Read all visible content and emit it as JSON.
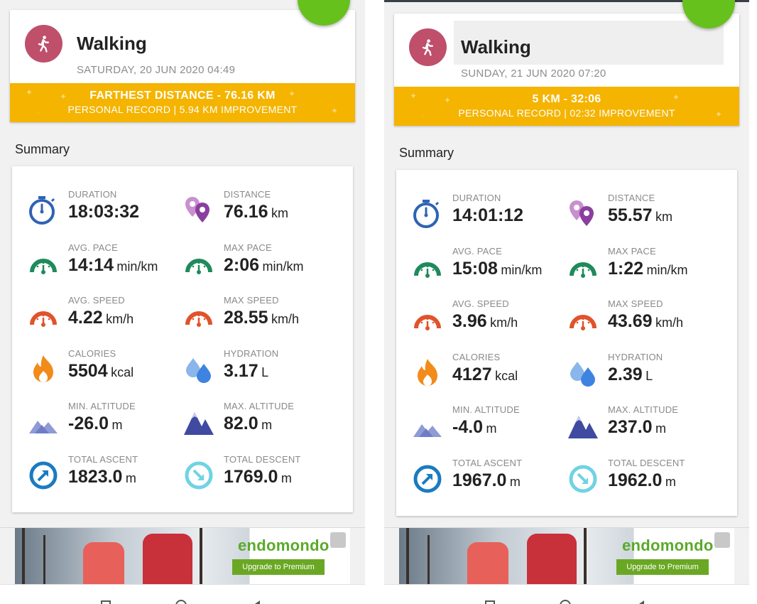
{
  "colors": {
    "accent_green": "#66c11c",
    "record_gold": "#f4b400",
    "avatar": "#bf4f6b",
    "pace_green": "#1f8a5b",
    "speed_orange": "#e0532b",
    "duration_blue": "#2e63b5",
    "distance_purple": "#8a3fa0",
    "calories_orange": "#f28b1a",
    "hydration_blue": "#3f83e0",
    "altitude_blue": "#3f4aa0",
    "ascent_blue": "#1b7bc0",
    "descent_cyan": "#6fd3e3"
  },
  "fab_label": "+",
  "ad": {
    "brand": "endomondo",
    "cta": "Upgrade to Premium"
  },
  "panels": [
    {
      "title": "Walking",
      "date": "SATURDAY, 20 JUN 2020 04:49",
      "record_line1": "FARTHEST DISTANCE  -  76.16 KM",
      "record_line2": "PERSONAL RECORD  |  5.94 KM IMPROVEMENT",
      "summary_label": "Summary",
      "stats": [
        {
          "label": "DURATION",
          "value": "18:03:32",
          "unit": "",
          "icon": "stopwatch-icon"
        },
        {
          "label": "DISTANCE",
          "value": "76.16",
          "unit": "km",
          "icon": "distance-pins-icon"
        },
        {
          "label": "AVG. PACE",
          "value": "14:14",
          "unit": "min/km",
          "icon": "pace-gauge-icon"
        },
        {
          "label": "MAX PACE",
          "value": "2:06",
          "unit": "min/km",
          "icon": "pace-gauge-icon"
        },
        {
          "label": "AVG. SPEED",
          "value": "4.22",
          "unit": "km/h",
          "icon": "speed-gauge-icon"
        },
        {
          "label": "MAX SPEED",
          "value": "28.55",
          "unit": "km/h",
          "icon": "speed-gauge-icon"
        },
        {
          "label": "CALORIES",
          "value": "5504",
          "unit": "kcal",
          "icon": "flame-icon"
        },
        {
          "label": "HYDRATION",
          "value": "3.17",
          "unit": "L",
          "icon": "water-drops-icon"
        },
        {
          "label": "MIN. ALTITUDE",
          "value": "-26.0",
          "unit": "m",
          "icon": "mountain-low-icon"
        },
        {
          "label": "MAX. ALTITUDE",
          "value": "82.0",
          "unit": "m",
          "icon": "mountain-high-icon"
        },
        {
          "label": "TOTAL ASCENT",
          "value": "1823.0",
          "unit": "m",
          "icon": "ascent-arrow-icon"
        },
        {
          "label": "TOTAL DESCENT",
          "value": "1769.0",
          "unit": "m",
          "icon": "descent-arrow-icon"
        }
      ]
    },
    {
      "title": "Walking",
      "date": "SUNDAY, 21 JUN 2020 07:20",
      "record_line1": "5 KM  -  32:06",
      "record_line2": "PERSONAL RECORD  |  02:32 IMPROVEMENT",
      "summary_label": "Summary",
      "stats": [
        {
          "label": "DURATION",
          "value": "14:01:12",
          "unit": "",
          "icon": "stopwatch-icon"
        },
        {
          "label": "DISTANCE",
          "value": "55.57",
          "unit": "km",
          "icon": "distance-pins-icon"
        },
        {
          "label": "AVG. PACE",
          "value": "15:08",
          "unit": "min/km",
          "icon": "pace-gauge-icon"
        },
        {
          "label": "MAX PACE",
          "value": "1:22",
          "unit": "min/km",
          "icon": "pace-gauge-icon"
        },
        {
          "label": "AVG. SPEED",
          "value": "3.96",
          "unit": "km/h",
          "icon": "speed-gauge-icon"
        },
        {
          "label": "MAX SPEED",
          "value": "43.69",
          "unit": "km/h",
          "icon": "speed-gauge-icon"
        },
        {
          "label": "CALORIES",
          "value": "4127",
          "unit": "kcal",
          "icon": "flame-icon"
        },
        {
          "label": "HYDRATION",
          "value": "2.39",
          "unit": "L",
          "icon": "water-drops-icon"
        },
        {
          "label": "MIN. ALTITUDE",
          "value": "-4.0",
          "unit": "m",
          "icon": "mountain-low-icon"
        },
        {
          "label": "MAX. ALTITUDE",
          "value": "237.0",
          "unit": "m",
          "icon": "mountain-high-icon"
        },
        {
          "label": "TOTAL ASCENT",
          "value": "1967.0",
          "unit": "m",
          "icon": "ascent-arrow-icon"
        },
        {
          "label": "TOTAL DESCENT",
          "value": "1962.0",
          "unit": "m",
          "icon": "descent-arrow-icon"
        }
      ]
    }
  ]
}
